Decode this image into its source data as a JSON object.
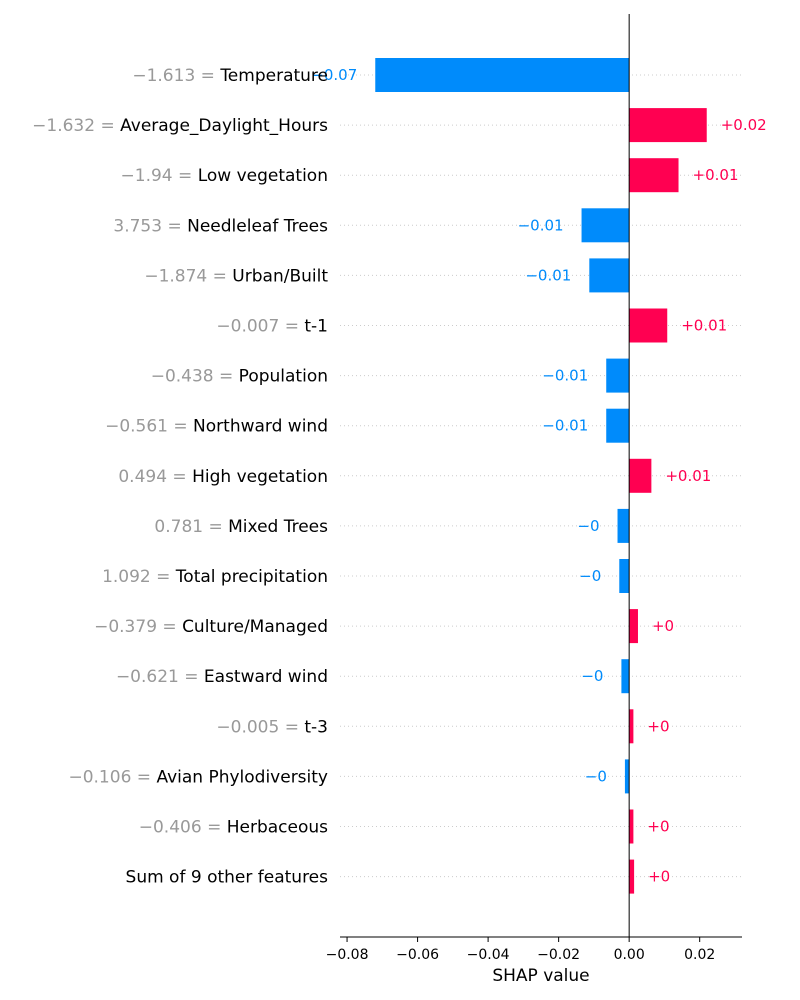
{
  "chart_data": {
    "type": "bar",
    "orientation": "horizontal",
    "xlabel": "SHAP value",
    "xlim": [
      -0.082,
      0.032
    ],
    "xticks": [
      {
        "value": -0.08,
        "label": "−0.08"
      },
      {
        "value": -0.06,
        "label": "−0.06"
      },
      {
        "value": -0.04,
        "label": "−0.04"
      },
      {
        "value": -0.02,
        "label": "−0.02"
      },
      {
        "value": 0.0,
        "label": "0.00"
      },
      {
        "value": 0.02,
        "label": "0.02"
      }
    ],
    "colors": {
      "positive": "#ff0051",
      "negative": "#008bfb",
      "feature_value": "#999999",
      "name": "#000000"
    },
    "features": [
      {
        "value_text": "−1.613 = ",
        "name": "Temperature",
        "shap": -0.072,
        "label": "−0.07"
      },
      {
        "value_text": "−1.632 = ",
        "name": "Average_Daylight_Hours",
        "shap": 0.022,
        "label": "+0.02"
      },
      {
        "value_text": "−1.94 = ",
        "name": "Low vegetation",
        "shap": 0.014,
        "label": "+0.01"
      },
      {
        "value_text": "3.753 = ",
        "name": "Needleleaf Trees",
        "shap": -0.0135,
        "label": "−0.01"
      },
      {
        "value_text": "−1.874 = ",
        "name": "Urban/Built",
        "shap": -0.0113,
        "label": "−0.01"
      },
      {
        "value_text": "−0.007 = ",
        "name": "t-1",
        "shap": 0.0108,
        "label": "+0.01"
      },
      {
        "value_text": "−0.438 = ",
        "name": "Population",
        "shap": -0.0065,
        "label": "−0.01"
      },
      {
        "value_text": "−0.561 = ",
        "name": "Northward wind",
        "shap": -0.0065,
        "label": "−0.01"
      },
      {
        "value_text": "0.494 = ",
        "name": "High vegetation",
        "shap": 0.0063,
        "label": "+0.01"
      },
      {
        "value_text": "0.781 = ",
        "name": "Mixed Trees",
        "shap": -0.0033,
        "label": "−0"
      },
      {
        "value_text": "1.092 = ",
        "name": "Total precipitation",
        "shap": -0.0028,
        "label": "−0"
      },
      {
        "value_text": "−0.379 = ",
        "name": "Culture/Managed",
        "shap": 0.0025,
        "label": "+0"
      },
      {
        "value_text": "−0.621 = ",
        "name": "Eastward wind",
        "shap": -0.0022,
        "label": "−0"
      },
      {
        "value_text": "−0.005 = ",
        "name": "t-3",
        "shap": 0.0012,
        "label": "+0"
      },
      {
        "value_text": "−0.106 = ",
        "name": "Avian Phylodiversity",
        "shap": -0.0012,
        "label": "−0"
      },
      {
        "value_text": "−0.406 = ",
        "name": "Herbaceous",
        "shap": 0.0012,
        "label": "+0"
      },
      {
        "value_text": "",
        "name": "Sum of 9 other features",
        "shap": 0.0014,
        "label": "+0"
      }
    ]
  }
}
